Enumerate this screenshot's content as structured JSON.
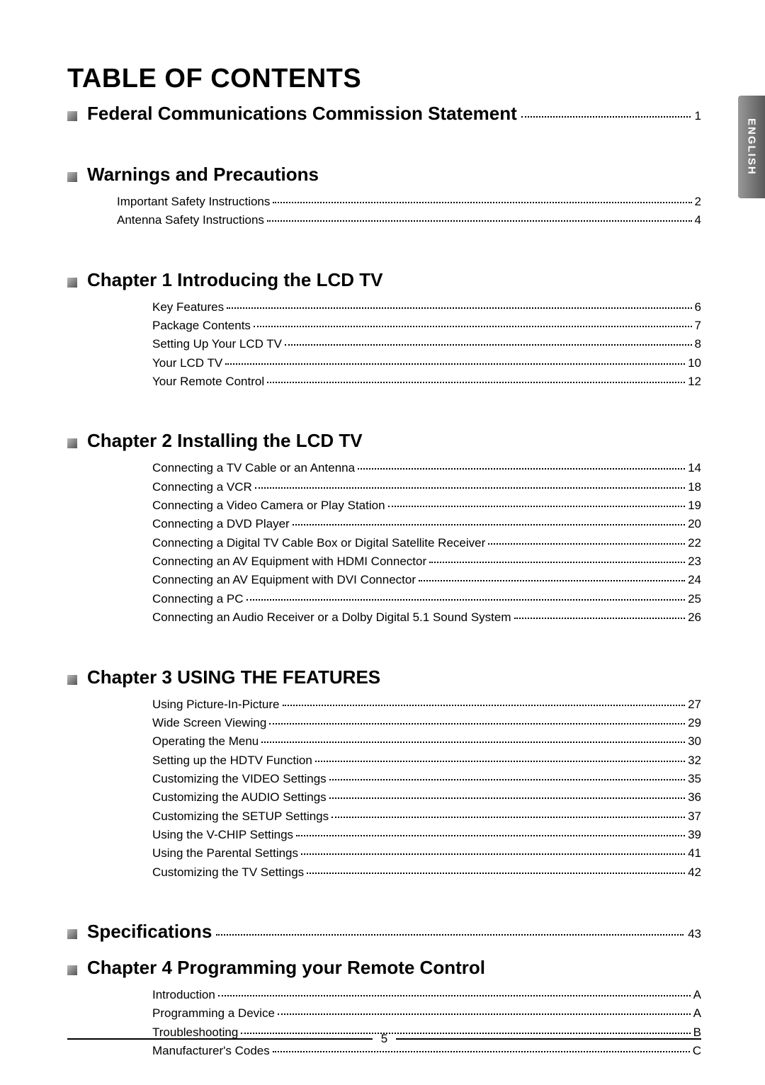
{
  "pageTitle": "TABLE OF CONTENTS",
  "tabLabel": "ENGLISH",
  "pageNumber": "5",
  "sections": [
    {
      "title": "Federal Communications Commission Statement",
      "page": "1",
      "entries": []
    },
    {
      "title": "Warnings and Precautions",
      "page": null,
      "entries": [
        {
          "label": "Important Safety Instructions",
          "page": "2",
          "indent": false
        },
        {
          "label": "Antenna Safety Instructions",
          "page": "4",
          "indent": false
        }
      ]
    },
    {
      "title": "Chapter 1 Introducing the LCD TV",
      "page": null,
      "entries": [
        {
          "label": "Key Features",
          "page": "6",
          "indent": true
        },
        {
          "label": "Package Contents",
          "page": "7",
          "indent": true
        },
        {
          "label": "Setting Up Your LCD TV",
          "page": "8",
          "indent": true
        },
        {
          "label": "Your LCD TV",
          "page": "10",
          "indent": true
        },
        {
          "label": "Your Remote Control",
          "page": "12",
          "indent": true
        }
      ]
    },
    {
      "title": "Chapter 2 Installing the LCD TV",
      "page": null,
      "entries": [
        {
          "label": "Connecting a TV Cable or an Antenna",
          "page": "14",
          "indent": true
        },
        {
          "label": "Connecting a VCR",
          "page": "18",
          "indent": true
        },
        {
          "label": "Connecting a Video Camera or Play Station",
          "page": "19",
          "indent": true
        },
        {
          "label": "Connecting a DVD Player",
          "page": "20",
          "indent": true
        },
        {
          "label": "Connecting a Digital TV Cable Box or Digital Satellite Receiver",
          "page": "22",
          "indent": true
        },
        {
          "label": "Connecting an AV Equipment with HDMI Connector",
          "page": "23",
          "indent": true
        },
        {
          "label": "Connecting an AV Equipment with DVI Connector",
          "page": "24",
          "indent": true
        },
        {
          "label": "Connecting a PC",
          "page": "25",
          "indent": true
        },
        {
          "label": "Connecting an Audio Receiver or a Dolby Digital 5.1 Sound System",
          "page": "26",
          "indent": true
        }
      ]
    },
    {
      "title": "Chapter 3 USING THE FEATURES",
      "page": null,
      "entries": [
        {
          "label": "Using Picture-In-Picture",
          "page": "27",
          "indent": true
        },
        {
          "label": "Wide Screen Viewing",
          "page": "29",
          "indent": true
        },
        {
          "label": "Operating the Menu",
          "page": "30",
          "indent": true
        },
        {
          "label": "Setting up the HDTV Function",
          "page": "32",
          "indent": true
        },
        {
          "label": "Customizing the VIDEO Settings",
          "page": "35",
          "indent": true
        },
        {
          "label": "Customizing the AUDIO Settings",
          "page": "36",
          "indent": true
        },
        {
          "label": "Customizing the SETUP Settings",
          "page": "37",
          "indent": true
        },
        {
          "label": "Using the V-CHIP Settings",
          "page": "39",
          "indent": true
        },
        {
          "label": "Using the Parental Settings",
          "page": "41",
          "indent": true
        },
        {
          "label": "Customizing the TV Settings",
          "page": "42",
          "indent": true
        }
      ]
    },
    {
      "title": "Specifications",
      "page": "43",
      "entries": []
    },
    {
      "title": "Chapter 4 Programming your Remote Control",
      "page": null,
      "entries": [
        {
          "label": "Introduction",
          "page": "A",
          "indent": true
        },
        {
          "label": "Programming a Device",
          "page": "A",
          "indent": true
        },
        {
          "label": "Troubleshooting",
          "page": "B",
          "indent": true
        },
        {
          "label": "Manufacturer's Codes",
          "page": "C",
          "indent": true
        }
      ]
    }
  ]
}
